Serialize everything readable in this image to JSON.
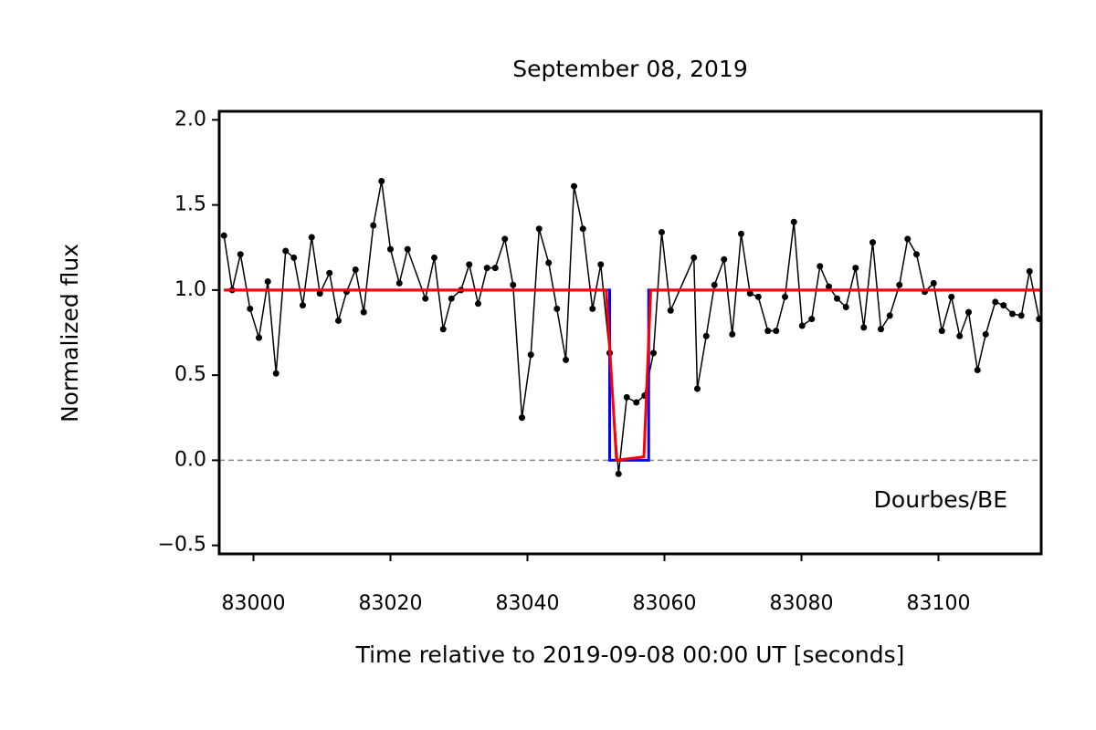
{
  "chart_data": {
    "type": "line",
    "title": "September 08, 2019",
    "xlabel": "Time relative to 2019-09-08 00:00 UT [seconds]",
    "ylabel": "Normalized flux",
    "annotation": "Dourbes/BE",
    "xlim": [
      82995,
      83115
    ],
    "ylim": [
      -0.55,
      2.05
    ],
    "xticks": [
      83000,
      83020,
      83040,
      83060,
      83080,
      83100
    ],
    "yticks": [
      {
        "value": -0.5,
        "label": "−0.5"
      },
      {
        "value": 0,
        "label": "0.0"
      },
      0.5,
      {
        "value": 1,
        "label": "1.0"
      },
      1.5,
      {
        "value": 2,
        "label": "2.0"
      }
    ],
    "hline": 0,
    "series": [
      {
        "color": "#000000",
        "marker": true,
        "x": [
          82995.7,
          82996.9,
          82998.1,
          82999.5,
          83000.8,
          83002.1,
          83003.3,
          83004.7,
          83005.9,
          83007.2,
          83008.5,
          83009.7,
          83011.1,
          83012.4,
          83013.6,
          83014.9,
          83016.1,
          83017.5,
          83018.7,
          83020.0,
          83021.3,
          83022.5,
          83025.1,
          83026.4,
          83027.7,
          83028.9,
          83030.3,
          83031.5,
          83032.8,
          83034.1,
          83035.3,
          83036.7,
          83037.9,
          83039.2,
          83040.5,
          83041.7,
          83043.1,
          83044.3,
          83045.6,
          83046.8,
          83048.1,
          83049.5,
          83050.7,
          83052.0,
          83053.3,
          83054.5,
          83055.9,
          83057.1,
          83058.4,
          83059.6,
          83060.9,
          83064.3,
          83064.8,
          83066.1,
          83067.3,
          83068.7,
          83069.9,
          83071.2,
          83072.5,
          83073.7,
          83075.1,
          83076.3,
          83077.6,
          83078.9,
          83080.1,
          83081.5,
          83082.7,
          83084.0,
          83085.2,
          83086.5,
          83087.9,
          83089.1,
          83090.4,
          83091.6,
          83092.9,
          83094.3,
          83095.5,
          83096.8,
          83098.0,
          83099.3,
          83100.5,
          83101.9,
          83103.1,
          83104.4,
          83105.7,
          83106.9,
          83108.3,
          83109.5,
          83110.8,
          83112.1,
          83113.3,
          83114.7
        ],
        "values": [
          1.32,
          1.0,
          1.21,
          0.89,
          0.72,
          1.05,
          0.51,
          1.23,
          1.19,
          0.91,
          1.31,
          0.98,
          1.1,
          0.82,
          0.99,
          1.12,
          0.87,
          1.38,
          1.64,
          1.24,
          1.04,
          1.24,
          0.95,
          1.19,
          0.77,
          0.95,
          1.0,
          1.15,
          0.92,
          1.13,
          1.13,
          1.3,
          1.03,
          0.25,
          0.62,
          1.36,
          1.16,
          0.89,
          0.59,
          1.61,
          1.36,
          0.89,
          1.15,
          0.63,
          -0.08,
          0.37,
          0.34,
          0.38,
          0.63,
          1.34,
          0.88,
          1.19,
          0.42,
          0.73,
          1.03,
          1.18,
          0.74,
          1.33,
          0.98,
          0.96,
          0.76,
          0.76,
          0.96,
          1.4,
          0.79,
          0.83,
          1.14,
          1.02,
          0.95,
          0.9,
          1.13,
          0.78,
          1.28,
          0.77,
          0.85,
          1.03,
          1.3,
          1.21,
          0.99,
          1.04,
          0.76,
          0.96,
          0.73,
          0.87,
          0.53,
          0.74,
          0.93,
          0.91,
          0.86,
          0.85,
          1.11,
          0.83
        ]
      },
      {
        "color": "#0000ff",
        "marker": false,
        "x": [
          82995.7,
          83052.0,
          83052.0,
          83057.7,
          83057.7,
          83115
        ],
        "values": [
          1,
          1,
          0,
          0,
          1,
          1
        ]
      },
      {
        "color": "#ff0000",
        "marker": false,
        "x": [
          82995.7,
          83051.5,
          83053.0,
          83057.0,
          83058.0,
          83115
        ],
        "values": [
          1,
          1,
          0,
          0.02,
          1,
          1
        ]
      }
    ]
  }
}
